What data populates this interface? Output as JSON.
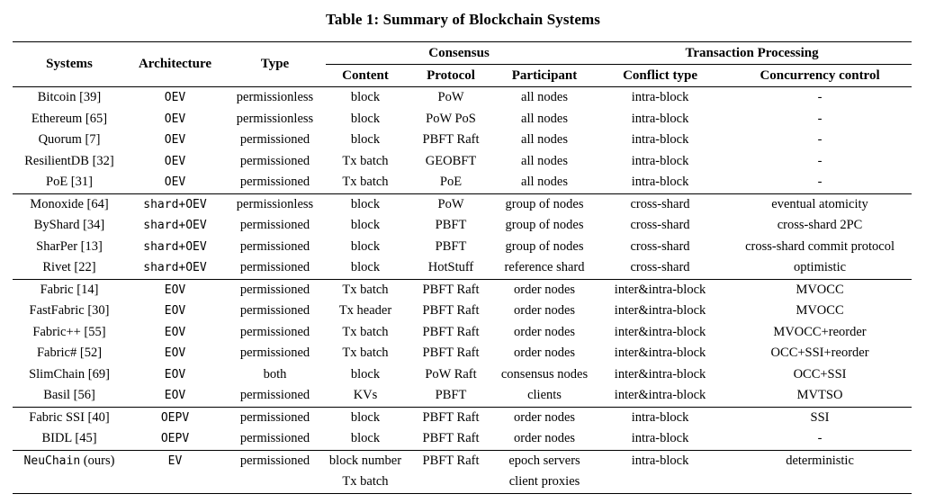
{
  "caption": "Table 1: Summary of Blockchain Systems",
  "headers": {
    "systems": "Systems",
    "architecture": "Architecture",
    "type": "Type",
    "consensus": "Consensus",
    "transaction_processing": "Transaction Processing",
    "content": "Content",
    "protocol": "Protocol",
    "participant": "Participant",
    "conflict_type": "Conflict type",
    "concurrency_control": "Concurrency control"
  },
  "rows": [
    {
      "system": "Bitcoin [39]",
      "arch": "OEV",
      "type": "permissionless",
      "content": "block",
      "protocol": "PoW",
      "participant": "all nodes",
      "conflict": "intra-block",
      "cc": "-"
    },
    {
      "system": "Ethereum [65]",
      "arch": "OEV",
      "type": "permissionless",
      "content": "block",
      "protocol": "PoW PoS",
      "participant": "all nodes",
      "conflict": "intra-block",
      "cc": "-"
    },
    {
      "system": "Quorum [7]",
      "arch": "OEV",
      "type": "permissioned",
      "content": "block",
      "protocol": "PBFT Raft",
      "participant": "all nodes",
      "conflict": "intra-block",
      "cc": "-"
    },
    {
      "system": "ResilientDB [32]",
      "arch": "OEV",
      "type": "permissioned",
      "content": "Tx batch",
      "protocol": "GEOBFT",
      "participant": "all nodes",
      "conflict": "intra-block",
      "cc": "-"
    },
    {
      "system": "PoE [31]",
      "arch": "OEV",
      "type": "permissioned",
      "content": "Tx batch",
      "protocol": "PoE",
      "participant": "all nodes",
      "conflict": "intra-block",
      "cc": "-"
    },
    {
      "system": "Monoxide [64]",
      "arch": "shard+OEV",
      "type": "permissionless",
      "content": "block",
      "protocol": "PoW",
      "participant": "group of nodes",
      "conflict": "cross-shard",
      "cc": "eventual atomicity"
    },
    {
      "system": "ByShard [34]",
      "arch": "shard+OEV",
      "type": "permissioned",
      "content": "block",
      "protocol": "PBFT",
      "participant": "group of nodes",
      "conflict": "cross-shard",
      "cc": "cross-shard 2PC"
    },
    {
      "system": "SharPer [13]",
      "arch": "shard+OEV",
      "type": "permissioned",
      "content": "block",
      "protocol": "PBFT",
      "participant": "group of nodes",
      "conflict": "cross-shard",
      "cc": "cross-shard commit protocol"
    },
    {
      "system": "Rivet [22]",
      "arch": "shard+OEV",
      "type": "permissioned",
      "content": "block",
      "protocol": "HotStuff",
      "participant": "reference shard",
      "conflict": "cross-shard",
      "cc": "optimistic"
    },
    {
      "system": "Fabric [14]",
      "arch": "EOV",
      "type": "permissioned",
      "content": "Tx batch",
      "protocol": "PBFT Raft",
      "participant": "order nodes",
      "conflict": "inter&intra-block",
      "cc": "MVOCC"
    },
    {
      "system": "FastFabric [30]",
      "arch": "EOV",
      "type": "permissioned",
      "content": "Tx header",
      "protocol": "PBFT Raft",
      "participant": "order nodes",
      "conflict": "inter&intra-block",
      "cc": "MVOCC"
    },
    {
      "system": "Fabric++ [55]",
      "arch": "EOV",
      "type": "permissioned",
      "content": "Tx batch",
      "protocol": "PBFT Raft",
      "participant": "order nodes",
      "conflict": "inter&intra-block",
      "cc": "MVOCC+reorder"
    },
    {
      "system": "Fabric# [52]",
      "arch": "EOV",
      "type": "permissioned",
      "content": "Tx batch",
      "protocol": "PBFT Raft",
      "participant": "order nodes",
      "conflict": "inter&intra-block",
      "cc": "OCC+SSI+reorder"
    },
    {
      "system": "SlimChain [69]",
      "arch": "EOV",
      "type": "both",
      "content": "block",
      "protocol": "PoW Raft",
      "participant": "consensus nodes",
      "conflict": "inter&intra-block",
      "cc": "OCC+SSI"
    },
    {
      "system": "Basil [56]",
      "arch": "EOV",
      "type": "permissioned",
      "content": "KVs",
      "protocol": "PBFT",
      "participant": "clients",
      "conflict": "inter&intra-block",
      "cc": "MVTSO"
    },
    {
      "system": "Fabric SSI [40]",
      "arch": "OEPV",
      "type": "permissioned",
      "content": "block",
      "protocol": "PBFT Raft",
      "participant": "order nodes",
      "conflict": "intra-block",
      "cc": "SSI"
    },
    {
      "system": "BIDL [45]",
      "arch": "OEPV",
      "type": "permissioned",
      "content": "block",
      "protocol": "PBFT Raft",
      "participant": "order nodes",
      "conflict": "intra-block",
      "cc": "-"
    }
  ],
  "neuchain": {
    "system_name": "NeuChain",
    "system_suffix": " (ours)",
    "arch": "EV",
    "type": "permissioned",
    "content": [
      "block number",
      "Tx batch"
    ],
    "protocol": "PBFT Raft",
    "participant": [
      "epoch servers",
      "client proxies"
    ],
    "conflict": "intra-block",
    "cc": "deterministic"
  }
}
